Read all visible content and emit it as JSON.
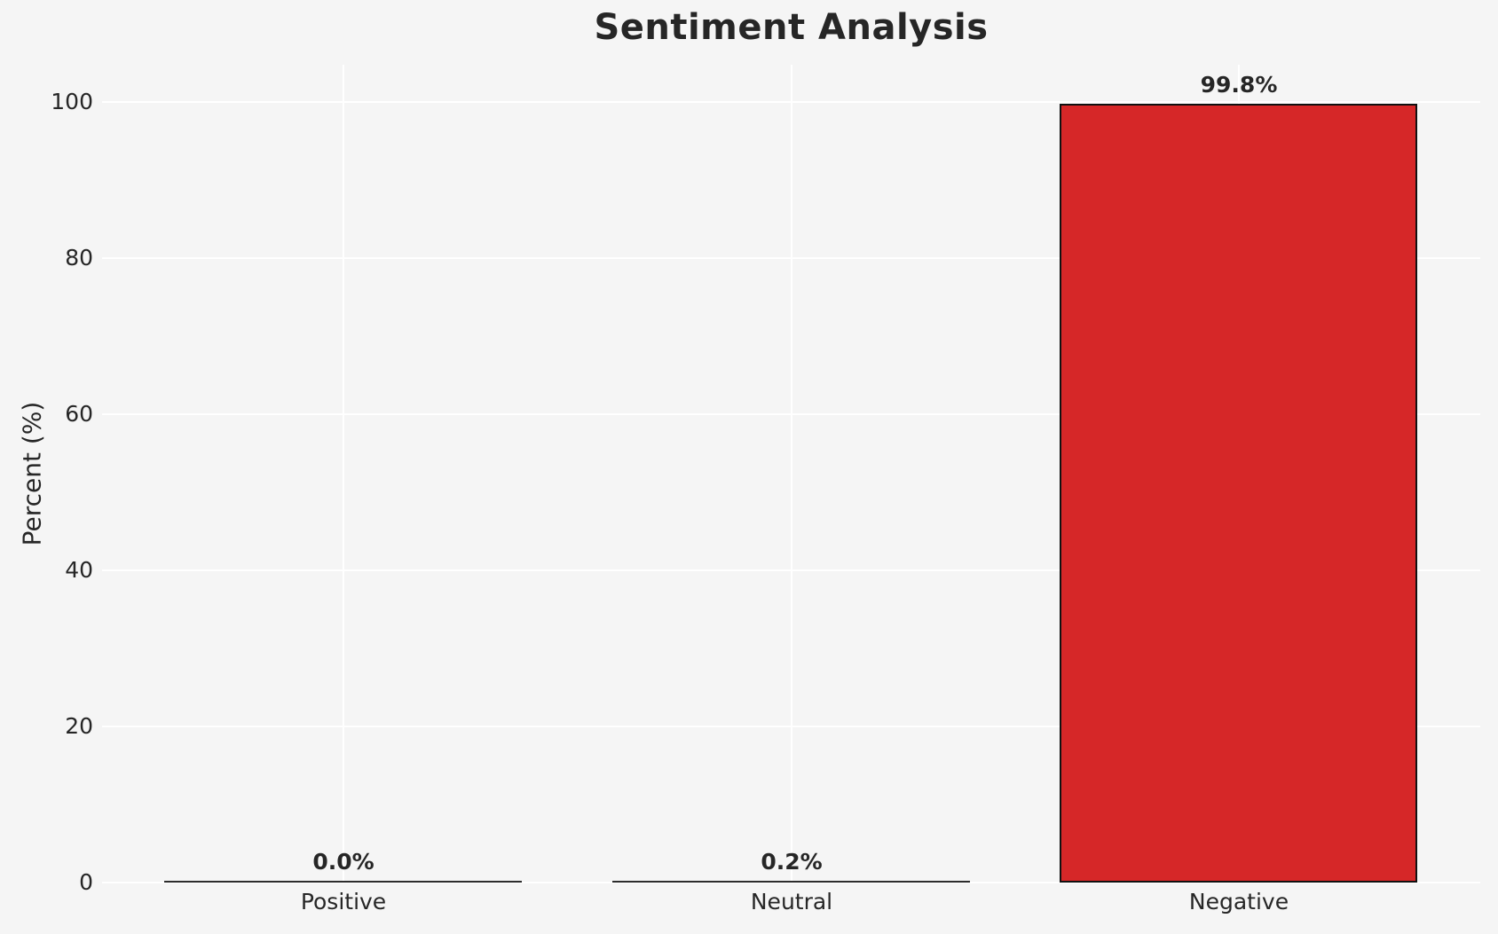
{
  "chart_data": {
    "type": "bar",
    "title": "Sentiment Analysis",
    "xlabel": "",
    "ylabel": "Percent (%)",
    "categories": [
      "Positive",
      "Neutral",
      "Negative"
    ],
    "values": [
      0.0,
      0.2,
      99.8
    ],
    "bar_labels": [
      "0.0%",
      "0.2%",
      "99.8%"
    ],
    "yticks": [
      0,
      20,
      40,
      60,
      80,
      100
    ],
    "ytick_labels": [
      "0",
      "20",
      "40",
      "60",
      "80",
      "100"
    ],
    "ylim": [
      0,
      104.8
    ],
    "xlim": [
      -0.54,
      2.54
    ],
    "bar_width_units": 0.8,
    "grid": true,
    "grid_orientation": "both",
    "legend": false
  },
  "colors": {
    "background": "#f5f5f5",
    "gridline": "#ffffff",
    "bar_fill": "#d62728",
    "bar_edge": "#111111",
    "text": "#262626"
  }
}
